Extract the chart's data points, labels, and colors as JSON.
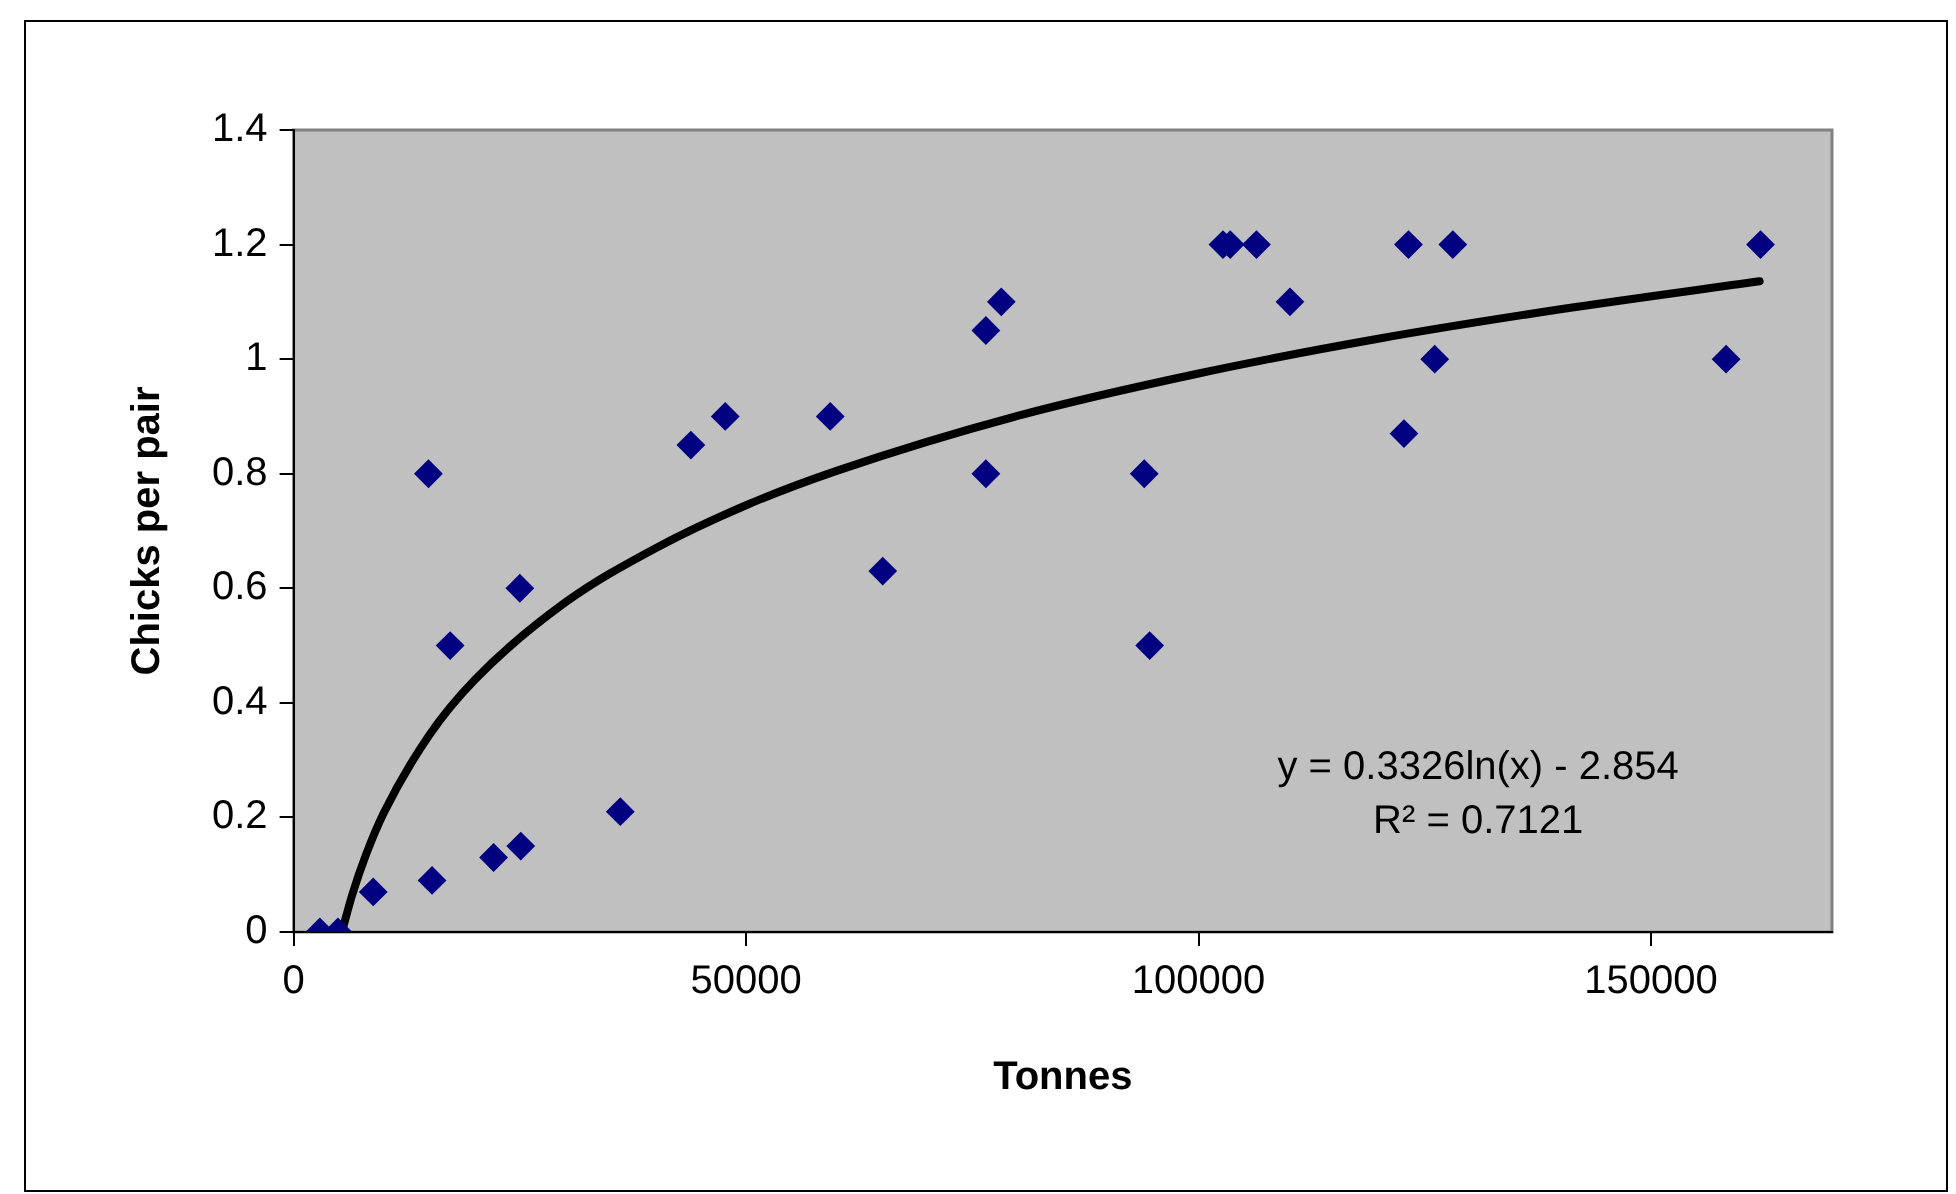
{
  "chart_data": {
    "type": "scatter",
    "xlabel": "Tonnes",
    "ylabel": "Chicks per pair",
    "xlim": [
      0,
      170000
    ],
    "xticks": [
      0,
      50000,
      100000,
      150000
    ],
    "ylim": [
      0,
      1.4
    ],
    "yticks": [
      0,
      0.2,
      0.4,
      0.6,
      0.8,
      1,
      1.2,
      1.4
    ],
    "grid": false,
    "legend": false,
    "marker": "diamond",
    "series": [
      {
        "color": "#000080",
        "x": [
          2900,
          4900,
          8800,
          14900,
          15300,
          17300,
          22100,
          25000,
          25100,
          36100,
          43900,
          47700,
          59300,
          65100,
          76500,
          76500,
          78200,
          94000,
          94600,
          102700,
          103500,
          106400,
          110100,
          122700,
          123200,
          126100,
          128100,
          158300,
          162100
        ],
        "values": [
          0,
          0,
          0.07,
          0.8,
          0.09,
          0.5,
          0.13,
          0.6,
          0.15,
          0.21,
          0.85,
          0.9,
          0.9,
          0.63,
          1.05,
          0.8,
          1.1,
          0.8,
          0.5,
          1.2,
          1.2,
          1.2,
          1.1,
          0.87,
          1.2,
          1,
          1.2,
          1,
          1.2
        ]
      },
      {
        "type": "line",
        "color": "#000000",
        "marker": "none",
        "line_style": "solid",
        "x": [
          5330,
          6500,
          8000,
          10000,
          15000,
          20000,
          30000,
          40000,
          50000,
          60000,
          80000,
          100000,
          120000,
          140000,
          162000
        ],
        "values": [
          0,
          0.066,
          0.135,
          0.209,
          0.344,
          0.44,
          0.575,
          0.67,
          0.745,
          0.805,
          0.901,
          0.975,
          1.036,
          1.087,
          1.136
        ]
      }
    ],
    "annotations": [
      "y = 0.3326ln(x) - 2.854\nR² = 0.7121"
    ]
  }
}
